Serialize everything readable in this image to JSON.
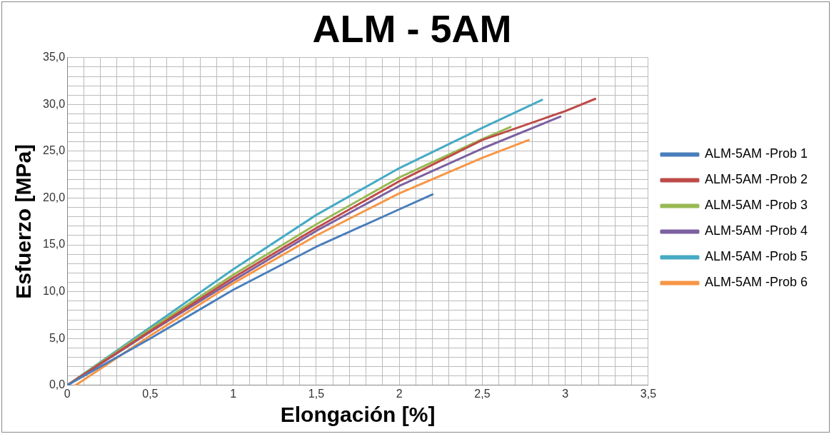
{
  "chart_data": {
    "type": "line",
    "title": "ALM - 5AM",
    "xlabel": "Elongación [%]",
    "ylabel": "Esfuerzo [MPa]",
    "legend": "right",
    "grid": true,
    "marker": "none",
    "line_style": "solid",
    "xlim": [
      0,
      3.5
    ],
    "ylim": [
      0,
      35
    ],
    "xticks": [
      {
        "value": 0,
        "label": "0"
      },
      {
        "value": 0.1,
        "label": null
      },
      {
        "value": 0.2,
        "label": null
      },
      {
        "value": 0.3,
        "label": null
      },
      {
        "value": 0.4,
        "label": null
      },
      {
        "value": 0.5,
        "label": "0,5"
      },
      {
        "value": 0.6,
        "label": null
      },
      {
        "value": 0.7,
        "label": null
      },
      {
        "value": 0.8,
        "label": null
      },
      {
        "value": 0.9,
        "label": null
      },
      {
        "value": 1,
        "label": "1"
      },
      {
        "value": 1.1,
        "label": null
      },
      {
        "value": 1.2,
        "label": null
      },
      {
        "value": 1.3,
        "label": null
      },
      {
        "value": 1.4,
        "label": null
      },
      {
        "value": 1.5,
        "label": "1,5"
      },
      {
        "value": 1.6,
        "label": null
      },
      {
        "value": 1.7,
        "label": null
      },
      {
        "value": 1.8,
        "label": null
      },
      {
        "value": 1.9,
        "label": null
      },
      {
        "value": 2,
        "label": "2"
      },
      {
        "value": 2.1,
        "label": null
      },
      {
        "value": 2.2,
        "label": null
      },
      {
        "value": 2.3,
        "label": null
      },
      {
        "value": 2.4,
        "label": null
      },
      {
        "value": 2.5,
        "label": "2,5"
      },
      {
        "value": 2.6,
        "label": null
      },
      {
        "value": 2.7,
        "label": null
      },
      {
        "value": 2.8,
        "label": null
      },
      {
        "value": 2.9,
        "label": null
      },
      {
        "value": 3,
        "label": "3"
      },
      {
        "value": 3.1,
        "label": null
      },
      {
        "value": 3.2,
        "label": null
      },
      {
        "value": 3.3,
        "label": null
      },
      {
        "value": 3.4,
        "label": null
      },
      {
        "value": 3.5,
        "label": "3,5"
      }
    ],
    "yticks": [
      {
        "value": 0,
        "label": "0,0"
      },
      {
        "value": 1,
        "label": null
      },
      {
        "value": 2,
        "label": null
      },
      {
        "value": 3,
        "label": null
      },
      {
        "value": 4,
        "label": null
      },
      {
        "value": 5,
        "label": "5,0"
      },
      {
        "value": 6,
        "label": null
      },
      {
        "value": 7,
        "label": null
      },
      {
        "value": 8,
        "label": null
      },
      {
        "value": 9,
        "label": null
      },
      {
        "value": 10,
        "label": "10,0"
      },
      {
        "value": 11,
        "label": null
      },
      {
        "value": 12,
        "label": null
      },
      {
        "value": 13,
        "label": null
      },
      {
        "value": 14,
        "label": null
      },
      {
        "value": 15,
        "label": "15,0"
      },
      {
        "value": 16,
        "label": null
      },
      {
        "value": 17,
        "label": null
      },
      {
        "value": 18,
        "label": null
      },
      {
        "value": 19,
        "label": null
      },
      {
        "value": 20,
        "label": "20,0"
      },
      {
        "value": 21,
        "label": null
      },
      {
        "value": 22,
        "label": null
      },
      {
        "value": 23,
        "label": null
      },
      {
        "value": 24,
        "label": null
      },
      {
        "value": 25,
        "label": "25,0"
      },
      {
        "value": 26,
        "label": null
      },
      {
        "value": 27,
        "label": null
      },
      {
        "value": 28,
        "label": null
      },
      {
        "value": 29,
        "label": null
      },
      {
        "value": 30,
        "label": "30,0"
      },
      {
        "value": 31,
        "label": null
      },
      {
        "value": 32,
        "label": null
      },
      {
        "value": 33,
        "label": null
      },
      {
        "value": 34,
        "label": null
      },
      {
        "value": 35,
        "label": "35,0"
      }
    ],
    "series": [
      {
        "name": "ALM-5AM -Prob 1",
        "color": "#4a7ebb",
        "x": [
          0,
          0.5,
          1,
          1.5,
          2,
          2.2
        ],
        "values": [
          0,
          5,
          10.2,
          14.8,
          18.8,
          20.4
        ]
      },
      {
        "name": "ALM-5AM -Prob 2",
        "color": "#be4b48",
        "x": [
          0,
          0.5,
          1,
          1.5,
          2,
          2.5,
          3,
          3.18
        ],
        "values": [
          0,
          5.8,
          11.5,
          16.8,
          21.8,
          26.2,
          29.3,
          30.6
        ]
      },
      {
        "name": "ALM-5AM -Prob 3",
        "color": "#98b954",
        "x": [
          0,
          0.5,
          1,
          1.5,
          2,
          2.5,
          2.67
        ],
        "values": [
          0,
          6,
          11.8,
          17.2,
          22.2,
          26.3,
          27.6
        ]
      },
      {
        "name": "ALM-5AM -Prob 4",
        "color": "#7d60a0",
        "x": [
          0,
          0.5,
          1,
          1.5,
          2,
          2.5,
          2.97
        ],
        "values": [
          0,
          5.7,
          11.2,
          16.5,
          21.3,
          25.3,
          28.7
        ]
      },
      {
        "name": "ALM-5AM -Prob 5",
        "color": "#46aac5",
        "x": [
          0,
          0.5,
          1,
          1.5,
          2,
          2.5,
          2.86
        ],
        "values": [
          0,
          6.2,
          12.4,
          18.2,
          23.2,
          27.5,
          30.5
        ]
      },
      {
        "name": "ALM-5AM -Prob 6",
        "color": "#f79646",
        "x": [
          0.05,
          0.5,
          1,
          1.5,
          2,
          2.5,
          2.78
        ],
        "values": [
          0,
          5.3,
          10.9,
          16,
          20.5,
          24.3,
          26.2
        ]
      }
    ]
  }
}
